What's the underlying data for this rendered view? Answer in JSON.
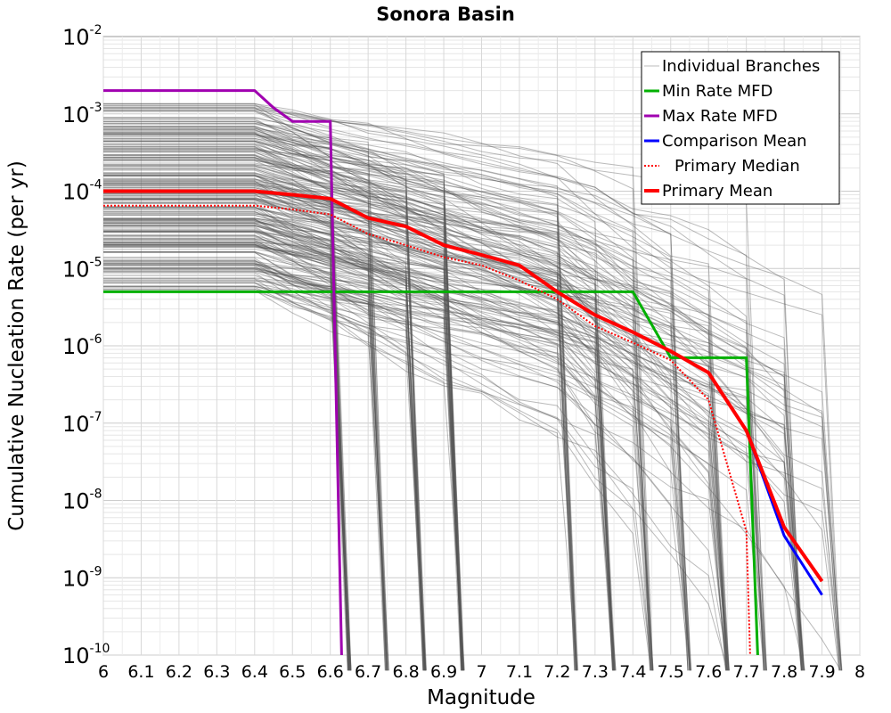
{
  "chart_data": {
    "type": "line",
    "title": "Sonora Basin",
    "xlabel": "Magnitude",
    "ylabel": "Cumulative Nucleation Rate (per yr)",
    "xlim": [
      6,
      8
    ],
    "ylim": [
      1e-10,
      0.01
    ],
    "yscale": "log",
    "grid": true,
    "legend_position": "top-right",
    "x_ticks": [
      "6",
      "6.1",
      "6.2",
      "6.3",
      "6.4",
      "6.5",
      "6.6",
      "6.7",
      "6.8",
      "6.9",
      "7",
      "7.1",
      "7.2",
      "7.3",
      "7.4",
      "7.5",
      "7.6",
      "7.7",
      "7.8",
      "7.9",
      "8"
    ],
    "y_ticks": [
      {
        "base": "10",
        "exp": "-2",
        "value": 0.01
      },
      {
        "base": "10",
        "exp": "-3",
        "value": 0.001
      },
      {
        "base": "10",
        "exp": "-4",
        "value": 0.0001
      },
      {
        "base": "10",
        "exp": "-5",
        "value": 1e-05
      },
      {
        "base": "10",
        "exp": "-6",
        "value": 1e-06
      },
      {
        "base": "10",
        "exp": "-7",
        "value": 1e-07
      },
      {
        "base": "10",
        "exp": "-8",
        "value": 1e-08
      },
      {
        "base": "10",
        "exp": "-9",
        "value": 1e-09
      },
      {
        "base": "10",
        "exp": "-10",
        "value": 1e-10
      }
    ],
    "series": [
      {
        "name": "Individual Branches",
        "color": "#555555",
        "style": "thin",
        "note_count_rendered": "many",
        "representative_endpoints": [
          6.65,
          6.75,
          6.85,
          6.95,
          7.25,
          7.35,
          7.45,
          7.55,
          7.65,
          7.75,
          7.85,
          7.95
        ]
      },
      {
        "name": "Min Rate MFD",
        "color": "#00b000",
        "style": "solid",
        "x": [
          6.0,
          7.4,
          7.5,
          7.7,
          7.73
        ],
        "y": [
          5e-06,
          5e-06,
          7e-07,
          7e-07,
          1e-10
        ]
      },
      {
        "name": "Max Rate MFD",
        "color": "#a000b0",
        "style": "solid",
        "x": [
          6.0,
          6.4,
          6.45,
          6.5,
          6.6,
          6.63
        ],
        "y": [
          0.002,
          0.002,
          0.0012,
          0.0008,
          0.0008,
          1e-10
        ]
      },
      {
        "name": "Comparison Mean",
        "color": "#0000ff",
        "style": "solid",
        "x": [
          6.0,
          6.4,
          6.5,
          6.6,
          6.7,
          6.8,
          6.9,
          7.0,
          7.1,
          7.2,
          7.3,
          7.4,
          7.5,
          7.6,
          7.7,
          7.8,
          7.9
        ],
        "y": [
          0.0001,
          0.0001,
          9e-05,
          8e-05,
          4.5e-05,
          3.5e-05,
          2e-05,
          1.5e-05,
          1.1e-05,
          5e-06,
          2.5e-06,
          1.5e-06,
          8.5e-07,
          4.5e-07,
          8e-08,
          3.5e-09,
          6e-10
        ]
      },
      {
        "name": "Primary Median",
        "color": "#ff0000",
        "style": "dotted",
        "x": [
          6.0,
          6.4,
          6.5,
          6.6,
          6.7,
          6.8,
          6.9,
          7.0,
          7.1,
          7.2,
          7.3,
          7.4,
          7.5,
          7.6,
          7.7,
          7.71
        ],
        "y": [
          6.5e-05,
          6.5e-05,
          5.8e-05,
          5e-05,
          2.8e-05,
          2e-05,
          1.4e-05,
          1.1e-05,
          7e-06,
          4e-06,
          1.8e-06,
          1.1e-06,
          6.5e-07,
          2e-07,
          4e-09,
          1e-10
        ]
      },
      {
        "name": "Primary Mean",
        "color": "#ff0000",
        "style": "thick",
        "x": [
          6.0,
          6.4,
          6.5,
          6.6,
          6.7,
          6.8,
          6.9,
          7.0,
          7.1,
          7.2,
          7.3,
          7.4,
          7.5,
          7.6,
          7.7,
          7.8,
          7.9
        ],
        "y": [
          0.0001,
          0.0001,
          9e-05,
          8e-05,
          4.5e-05,
          3.5e-05,
          2e-05,
          1.5e-05,
          1.1e-05,
          5e-06,
          2.5e-06,
          1.5e-06,
          8.5e-07,
          4.5e-07,
          8e-08,
          4.5e-09,
          9e-10
        ]
      }
    ]
  }
}
